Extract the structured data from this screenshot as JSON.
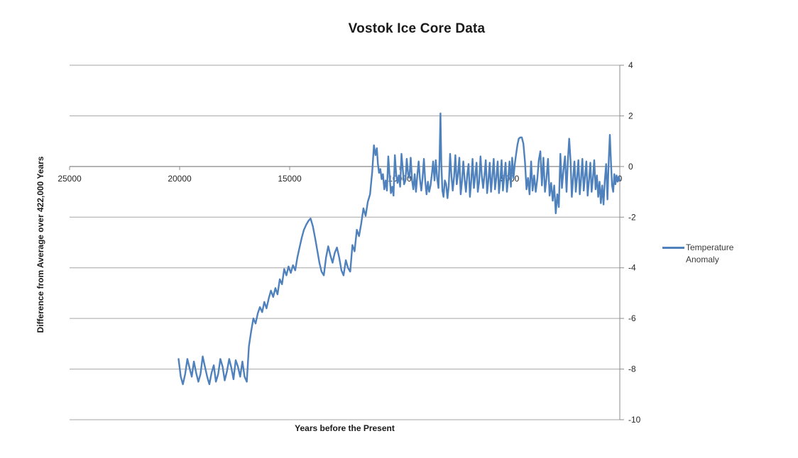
{
  "chart_data": {
    "type": "line",
    "title": "Vostok Ice Core Data",
    "xlabel": "Years before the Present",
    "ylabel": "Difference from Average over 422,000 Years",
    "grid": "horizontal",
    "legend_position": "right",
    "x_axis": {
      "min": 0,
      "max": 25000,
      "reversed": true,
      "ticks": [
        25000,
        20000,
        15000,
        10000,
        5000,
        0
      ]
    },
    "y_axis": {
      "min": -10,
      "max": 4,
      "side": "right",
      "ticks": [
        4,
        2,
        0,
        -2,
        -4,
        -6,
        -8,
        -10
      ]
    },
    "colors": {
      "line": "#4F81BD",
      "grid": "#A6A6A6",
      "axis": "#8C8C8C",
      "tick_text": "#262626"
    },
    "series": [
      {
        "name": "Temperature Anomaly",
        "color": "#4F81BD",
        "points": [
          [
            20050,
            -7.6
          ],
          [
            19950,
            -8.3
          ],
          [
            19850,
            -8.6
          ],
          [
            19750,
            -8.2
          ],
          [
            19650,
            -7.6
          ],
          [
            19550,
            -7.95
          ],
          [
            19450,
            -8.3
          ],
          [
            19350,
            -7.7
          ],
          [
            19250,
            -8.15
          ],
          [
            19150,
            -8.5
          ],
          [
            19050,
            -8.2
          ],
          [
            18950,
            -7.5
          ],
          [
            18850,
            -7.9
          ],
          [
            18750,
            -8.3
          ],
          [
            18650,
            -8.6
          ],
          [
            18550,
            -8.15
          ],
          [
            18450,
            -7.85
          ],
          [
            18350,
            -8.5
          ],
          [
            18250,
            -8.2
          ],
          [
            18150,
            -7.6
          ],
          [
            18050,
            -7.9
          ],
          [
            17950,
            -8.45
          ],
          [
            17850,
            -8.1
          ],
          [
            17750,
            -7.6
          ],
          [
            17650,
            -7.95
          ],
          [
            17550,
            -8.4
          ],
          [
            17450,
            -7.65
          ],
          [
            17350,
            -7.9
          ],
          [
            17250,
            -8.3
          ],
          [
            17150,
            -7.7
          ],
          [
            17050,
            -8.3
          ],
          [
            16950,
            -8.5
          ],
          [
            16850,
            -7.1
          ],
          [
            16750,
            -6.5
          ],
          [
            16650,
            -6.0
          ],
          [
            16550,
            -6.2
          ],
          [
            16450,
            -5.8
          ],
          [
            16350,
            -5.55
          ],
          [
            16250,
            -5.75
          ],
          [
            16150,
            -5.35
          ],
          [
            16050,
            -5.6
          ],
          [
            15950,
            -5.2
          ],
          [
            15850,
            -4.9
          ],
          [
            15750,
            -5.15
          ],
          [
            15650,
            -4.8
          ],
          [
            15550,
            -5.05
          ],
          [
            15450,
            -4.45
          ],
          [
            15350,
            -4.65
          ],
          [
            15250,
            -4.05
          ],
          [
            15150,
            -4.3
          ],
          [
            15050,
            -3.95
          ],
          [
            14950,
            -4.2
          ],
          [
            14850,
            -3.9
          ],
          [
            14750,
            -4.1
          ],
          [
            14650,
            -3.6
          ],
          [
            14550,
            -3.2
          ],
          [
            14450,
            -2.8
          ],
          [
            14350,
            -2.5
          ],
          [
            14250,
            -2.3
          ],
          [
            14150,
            -2.15
          ],
          [
            14050,
            -2.05
          ],
          [
            13950,
            -2.35
          ],
          [
            13850,
            -2.8
          ],
          [
            13750,
            -3.3
          ],
          [
            13650,
            -3.8
          ],
          [
            13550,
            -4.15
          ],
          [
            13450,
            -4.3
          ],
          [
            13350,
            -3.6
          ],
          [
            13250,
            -3.15
          ],
          [
            13150,
            -3.5
          ],
          [
            13050,
            -3.8
          ],
          [
            12950,
            -3.4
          ],
          [
            12850,
            -3.2
          ],
          [
            12750,
            -3.6
          ],
          [
            12650,
            -4.1
          ],
          [
            12550,
            -4.3
          ],
          [
            12450,
            -3.7
          ],
          [
            12350,
            -4.0
          ],
          [
            12250,
            -4.15
          ],
          [
            12150,
            -3.1
          ],
          [
            12050,
            -3.35
          ],
          [
            11950,
            -2.5
          ],
          [
            11850,
            -2.75
          ],
          [
            11750,
            -2.25
          ],
          [
            11650,
            -1.65
          ],
          [
            11550,
            -1.95
          ],
          [
            11450,
            -1.4
          ],
          [
            11350,
            -1.1
          ],
          [
            11250,
            -0.2
          ],
          [
            11170,
            0.84
          ],
          [
            11100,
            0.45
          ],
          [
            11040,
            0.72
          ],
          [
            10990,
            0.1
          ],
          [
            10940,
            -0.25
          ],
          [
            10880,
            -0.1
          ],
          [
            10820,
            -0.5
          ],
          [
            10760,
            -0.3
          ],
          [
            10700,
            -0.9
          ],
          [
            10640,
            -0.55
          ],
          [
            10580,
            -0.95
          ],
          [
            10520,
            0.4
          ],
          [
            10460,
            -0.35
          ],
          [
            10400,
            -1.05
          ],
          [
            10340,
            -0.8
          ],
          [
            10280,
            -1.15
          ],
          [
            10220,
            0.45
          ],
          [
            10160,
            -0.3
          ],
          [
            10100,
            -0.65
          ],
          [
            10040,
            -0.35
          ],
          [
            9980,
            -0.8
          ],
          [
            9920,
            0.5
          ],
          [
            9860,
            -0.1
          ],
          [
            9800,
            -0.7
          ],
          [
            9740,
            -0.55
          ],
          [
            9680,
            0.3
          ],
          [
            9620,
            -0.3
          ],
          [
            9560,
            -0.45
          ],
          [
            9500,
            0.35
          ],
          [
            9440,
            -0.55
          ],
          [
            9380,
            -0.9
          ],
          [
            9320,
            -0.3
          ],
          [
            9260,
            -1.0
          ],
          [
            9200,
            -0.35
          ],
          [
            9140,
            0.2
          ],
          [
            9080,
            -0.5
          ],
          [
            9020,
            -0.95
          ],
          [
            8960,
            -0.45
          ],
          [
            8900,
            0.3
          ],
          [
            8840,
            -0.6
          ],
          [
            8780,
            -1.1
          ],
          [
            8720,
            -0.6
          ],
          [
            8660,
            -1.0
          ],
          [
            8600,
            -0.75
          ],
          [
            8540,
            -0.3
          ],
          [
            8480,
            0.2
          ],
          [
            8420,
            -0.55
          ],
          [
            8360,
            0.25
          ],
          [
            8300,
            -0.45
          ],
          [
            8240,
            -0.85
          ],
          [
            8190,
            0.3
          ],
          [
            8150,
            2.1
          ],
          [
            8110,
            0.15
          ],
          [
            8060,
            -0.95
          ],
          [
            8010,
            -1.2
          ],
          [
            7950,
            -0.55
          ],
          [
            7890,
            -0.7
          ],
          [
            7830,
            -1.25
          ],
          [
            7770,
            -0.75
          ],
          [
            7710,
            0.5
          ],
          [
            7650,
            -0.35
          ],
          [
            7590,
            -0.95
          ],
          [
            7530,
            -0.4
          ],
          [
            7470,
            0.45
          ],
          [
            7410,
            -0.7
          ],
          [
            7350,
            -0.3
          ],
          [
            7290,
            0.35
          ],
          [
            7230,
            -1.1
          ],
          [
            7170,
            -0.6
          ],
          [
            7110,
            0.2
          ],
          [
            7050,
            -0.5
          ],
          [
            6990,
            -1.0
          ],
          [
            6930,
            -0.3
          ],
          [
            6870,
            0.1
          ],
          [
            6810,
            -1.2
          ],
          [
            6750,
            -0.55
          ],
          [
            6690,
            0.3
          ],
          [
            6630,
            -0.85
          ],
          [
            6570,
            -0.4
          ],
          [
            6510,
            0.15
          ],
          [
            6450,
            -1.0
          ],
          [
            6390,
            -0.6
          ],
          [
            6330,
            0.4
          ],
          [
            6270,
            -0.35
          ],
          [
            6210,
            -0.85
          ],
          [
            6150,
            -0.35
          ],
          [
            6090,
            0.25
          ],
          [
            6030,
            -1.05
          ],
          [
            5970,
            -0.55
          ],
          [
            5910,
            0.15
          ],
          [
            5850,
            -1.0
          ],
          [
            5790,
            -0.4
          ],
          [
            5730,
            0.3
          ],
          [
            5670,
            -0.9
          ],
          [
            5610,
            -0.45
          ],
          [
            5550,
            0.2
          ],
          [
            5490,
            -1.05
          ],
          [
            5430,
            -0.5
          ],
          [
            5370,
            0.25
          ],
          [
            5310,
            -0.95
          ],
          [
            5250,
            -0.4
          ],
          [
            5190,
            0.15
          ],
          [
            5130,
            -1.0
          ],
          [
            5070,
            -0.5
          ],
          [
            5010,
            0.2
          ],
          [
            4950,
            -0.8
          ],
          [
            4890,
            0.35
          ],
          [
            4830,
            -0.45
          ],
          [
            4770,
            0.1
          ],
          [
            4710,
            0.5
          ],
          [
            4650,
            0.85
          ],
          [
            4590,
            1.1
          ],
          [
            4520,
            1.15
          ],
          [
            4450,
            1.15
          ],
          [
            4380,
            0.9
          ],
          [
            4310,
            0.2
          ],
          [
            4240,
            -0.9
          ],
          [
            4170,
            -0.45
          ],
          [
            4100,
            -1.1
          ],
          [
            4030,
            0.2
          ],
          [
            3960,
            -0.95
          ],
          [
            3890,
            -0.35
          ],
          [
            3820,
            -1.0
          ],
          [
            3750,
            -0.5
          ],
          [
            3680,
            0.25
          ],
          [
            3610,
            0.6
          ],
          [
            3540,
            -0.75
          ],
          [
            3470,
            0.35
          ],
          [
            3400,
            -1.0
          ],
          [
            3330,
            -0.45
          ],
          [
            3260,
            0.3
          ],
          [
            3190,
            -1.15
          ],
          [
            3120,
            -0.65
          ],
          [
            3050,
            -1.35
          ],
          [
            2980,
            -0.75
          ],
          [
            2910,
            -1.85
          ],
          [
            2840,
            -1.1
          ],
          [
            2770,
            -1.6
          ],
          [
            2700,
            0.5
          ],
          [
            2630,
            -0.85
          ],
          [
            2560,
            -0.15
          ],
          [
            2490,
            0.4
          ],
          [
            2420,
            -1.0
          ],
          [
            2360,
            0.2
          ],
          [
            2300,
            1.1
          ],
          [
            2240,
            0.25
          ],
          [
            2180,
            -1.2
          ],
          [
            2120,
            -0.45
          ],
          [
            2060,
            0.2
          ],
          [
            2000,
            -1.0
          ],
          [
            1940,
            -0.4
          ],
          [
            1880,
            0.25
          ],
          [
            1820,
            -1.1
          ],
          [
            1760,
            -0.5
          ],
          [
            1700,
            0.3
          ],
          [
            1640,
            -0.95
          ],
          [
            1580,
            -0.4
          ],
          [
            1520,
            0.2
          ],
          [
            1460,
            -1.15
          ],
          [
            1400,
            -0.55
          ],
          [
            1340,
            0.15
          ],
          [
            1280,
            -1.0
          ],
          [
            1220,
            -0.45
          ],
          [
            1160,
            0.25
          ],
          [
            1100,
            -0.9
          ],
          [
            1040,
            -0.35
          ],
          [
            980,
            -1.2
          ],
          [
            920,
            -0.6
          ],
          [
            860,
            -1.45
          ],
          [
            800,
            -0.75
          ],
          [
            740,
            -1.5
          ],
          [
            680,
            -0.55
          ],
          [
            620,
            0.1
          ],
          [
            560,
            -1.3
          ],
          [
            500,
            0.3
          ],
          [
            450,
            1.25
          ],
          [
            400,
            0.15
          ],
          [
            350,
            -0.75
          ],
          [
            300,
            -1.0
          ],
          [
            250,
            -0.3
          ],
          [
            200,
            -0.7
          ],
          [
            150,
            -0.35
          ],
          [
            100,
            -0.6
          ],
          [
            50,
            -0.4
          ],
          [
            0,
            -0.55
          ]
        ]
      }
    ]
  }
}
